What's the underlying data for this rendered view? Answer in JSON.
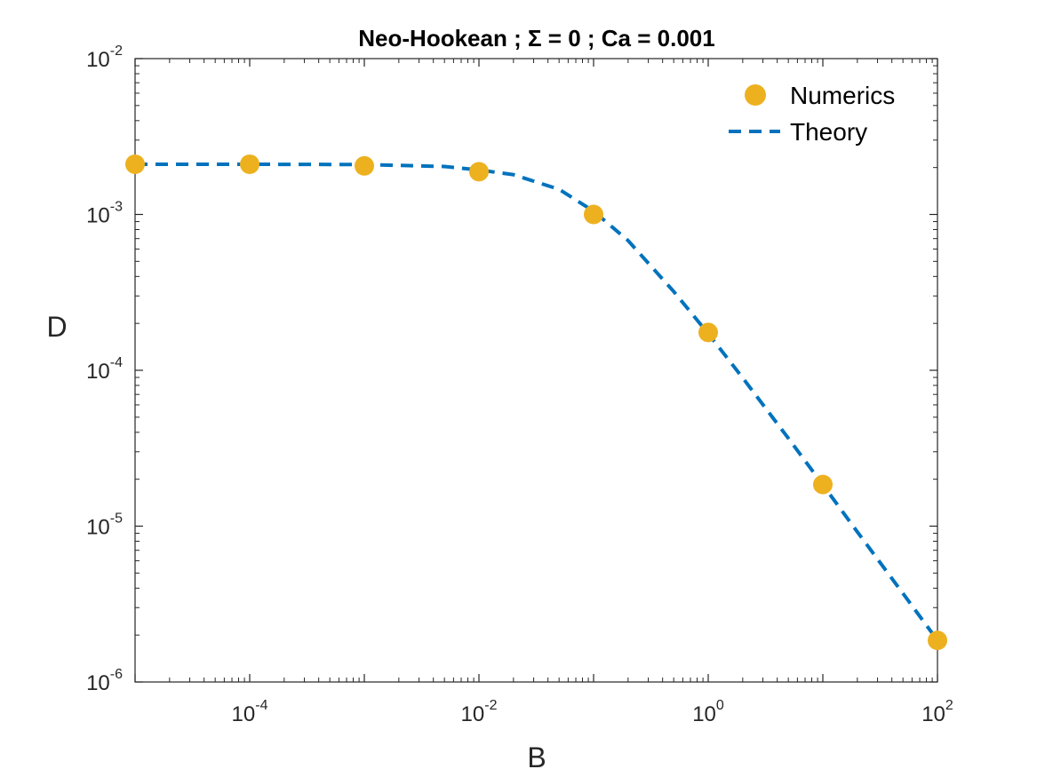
{
  "chart_data": {
    "type": "scatter",
    "title": "Neo-Hookean ; Σ = 0 ; Ca = 0.001",
    "xlabel": "B",
    "ylabel": "D",
    "xscale": "log",
    "yscale": "log",
    "xlim": [
      1e-05,
      100
    ],
    "ylim": [
      1e-06,
      0.01
    ],
    "grid": false,
    "legend_position": "top-right",
    "x_ticks": [
      {
        "base": "10",
        "exp": "-4",
        "value": 0.0001
      },
      {
        "base": "10",
        "exp": "-2",
        "value": 0.01
      },
      {
        "base": "10",
        "exp": "0",
        "value": 1
      },
      {
        "base": "10",
        "exp": "2",
        "value": 100
      }
    ],
    "y_ticks": [
      {
        "base": "10",
        "exp": "-6",
        "value": 1e-06
      },
      {
        "base": "10",
        "exp": "-5",
        "value": 1e-05
      },
      {
        "base": "10",
        "exp": "-4",
        "value": 0.0001
      },
      {
        "base": "10",
        "exp": "-3",
        "value": 0.001
      },
      {
        "base": "10",
        "exp": "-2",
        "value": 0.01
      }
    ],
    "series": [
      {
        "name": "Numerics",
        "kind": "markers",
        "color": "#EDB120",
        "x": [
          1e-05,
          0.0001,
          0.001,
          0.01,
          0.1,
          1,
          10,
          100
        ],
        "y": [
          0.0021,
          0.0021,
          0.00205,
          0.00188,
          0.001,
          0.000175,
          1.85e-05,
          1.85e-06
        ]
      },
      {
        "name": "Theory",
        "kind": "dashed-line",
        "color": "#0072BD",
        "x": [
          1e-05,
          0.0001,
          0.001,
          0.005,
          0.01,
          0.02,
          0.05,
          0.1,
          0.2,
          0.5,
          1,
          2,
          5,
          10,
          20,
          50,
          100
        ],
        "y": [
          0.0021,
          0.0021,
          0.00209,
          0.00203,
          0.00193,
          0.0018,
          0.00145,
          0.00105,
          0.00068,
          0.00032,
          0.000172,
          8.95e-05,
          3.66e-05,
          1.84e-05,
          9.2e-06,
          3.7e-06,
          1.85e-06
        ]
      }
    ]
  }
}
